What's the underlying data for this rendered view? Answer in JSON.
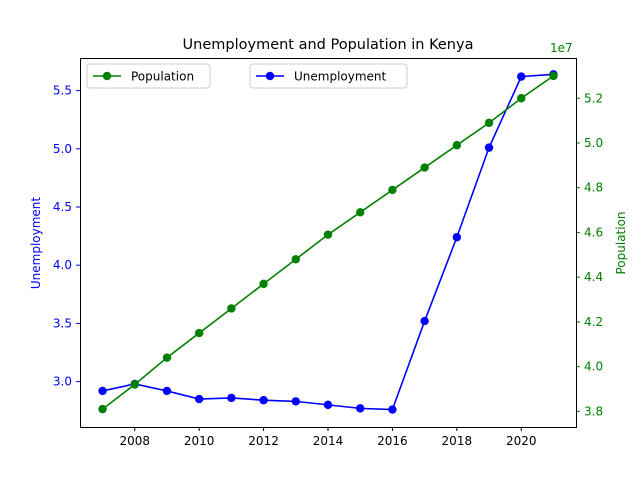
{
  "chart_data": {
    "type": "line",
    "title": "Unemployment and Population in Kenya",
    "xlabel": "",
    "x": [
      2007,
      2008,
      2009,
      2010,
      2011,
      2012,
      2013,
      2014,
      2015,
      2016,
      2017,
      2018,
      2019,
      2020,
      2021
    ],
    "xlim": [
      2006.3,
      2021.7
    ],
    "x_ticks": [
      2008,
      2010,
      2012,
      2014,
      2016,
      2018,
      2020
    ],
    "grid": false,
    "axes": {
      "left": {
        "label": "Unemployment",
        "color": "#0000ff",
        "ylim": [
          2.61,
          5.78
        ],
        "ticks": [
          3.0,
          3.5,
          4.0,
          4.5,
          5.0,
          5.5
        ],
        "tick_labels": [
          "3.0",
          "3.5",
          "4.0",
          "4.5",
          "5.0",
          "5.5"
        ]
      },
      "right": {
        "label": "Population",
        "color": "#008000",
        "ylim": [
          3.73,
          5.38
        ],
        "ticks": [
          3.8,
          4.0,
          4.2,
          4.4,
          4.6,
          4.8,
          5.0,
          5.2
        ],
        "tick_labels": [
          "3.8",
          "4.0",
          "4.2",
          "4.4",
          "4.6",
          "4.8",
          "5.0",
          "5.2"
        ],
        "offset_text": "1e7"
      }
    },
    "series": [
      {
        "name": "Unemployment",
        "axis": "left",
        "color": "#0000ff",
        "values": [
          2.92,
          2.98,
          2.92,
          2.85,
          2.86,
          2.84,
          2.83,
          2.8,
          2.77,
          2.76,
          3.52,
          4.24,
          5.01,
          5.62,
          5.64
        ],
        "legend_position": "upper-center"
      },
      {
        "name": "Population",
        "axis": "right",
        "color": "#008000",
        "values": [
          3.81,
          3.92,
          4.04,
          4.15,
          4.26,
          4.37,
          4.48,
          4.59,
          4.69,
          4.79,
          4.89,
          4.99,
          5.09,
          5.2,
          5.3
        ],
        "legend_position": "upper-left"
      }
    ]
  }
}
